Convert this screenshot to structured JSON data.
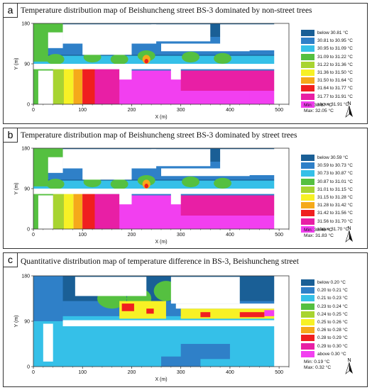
{
  "panels": [
    {
      "letter": "a",
      "title": "Temperature distribution map of Beishuncheng street BS-3 dominated by non-street trees",
      "legend": [
        "below 30.81 °C",
        "30.81 to 30.95 °C",
        "30.95 to 31.09 °C",
        "31.09 to 31.22 °C",
        "31.22 to 31.36 °C",
        "31.36 to 31.50 °C",
        "31.50 to 31.64 °C",
        "31.64 to 31.77 °C",
        "31.77 to 31.91 °C",
        "above 31.91 °C"
      ],
      "min": "Min: 30.67 °C",
      "max": "Max: 32.05 °C"
    },
    {
      "letter": "b",
      "title": "Temperature distribution map of Beishuncheng street BS-3 dominated by street trees",
      "legend": [
        "below 30.59 °C",
        "30.59 to 30.73 °C",
        "30.73 to 30.87 °C",
        "30.87 to 31.01 °C",
        "31.01 to 31.15 °C",
        "31.15 to 31.28 °C",
        "31.28 to 31.42 °C",
        "31.42 to 31.56 °C",
        "31.56 to 31.70 °C",
        "above 31.70 °C"
      ],
      "min": "Min: 30.46 °C",
      "max": "Max: 31.83 °C"
    },
    {
      "letter": "c",
      "title": "Quantitative distribution map of temperature difference in BS-3, Beishuncheng street",
      "legend": [
        "below 0.20 °C",
        "0.20 to 0.21 °C",
        "0.21 to 0.23 °C",
        "0.23 to 0.24 °C",
        "0.24 to 0.25 °C",
        "0.25 to 0.26 °C",
        "0.26 to 0.28 °C",
        "0.28 to 0.29 °C",
        "0.29 to 0.30 °C",
        "above 0.30 °C"
      ],
      "min": "Min: 0.19 °C",
      "max": "Max: 0.32 °C"
    }
  ],
  "legend_colors": [
    "#1a5f96",
    "#2f80c8",
    "#35c0e8",
    "#55c040",
    "#a8d431",
    "#f7f125",
    "#f5a91a",
    "#f01f1f",
    "#e81fa5",
    "#f23ff0"
  ],
  "x_axis": {
    "label": "X (m)",
    "ticks": [
      0,
      100,
      200,
      300,
      400,
      500
    ],
    "range": [
      0,
      520
    ]
  },
  "y_axis": {
    "label": "Y (m)",
    "ticks": [
      0,
      90,
      180
    ],
    "range": [
      0,
      180
    ]
  },
  "north_label": "N"
}
